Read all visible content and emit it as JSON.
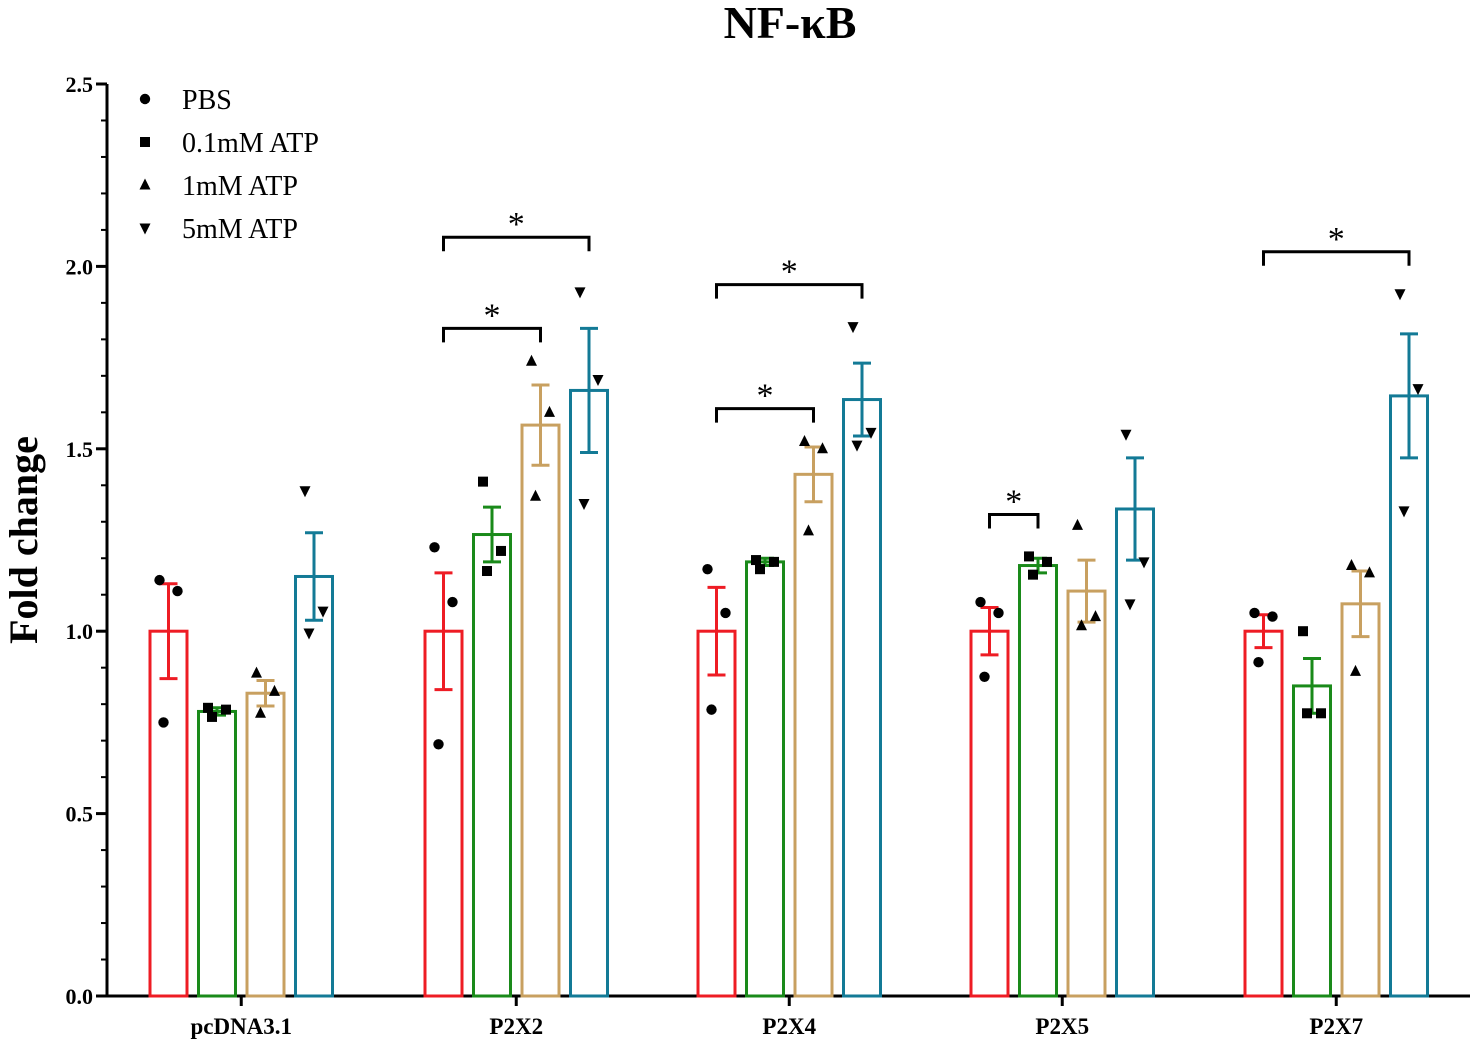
{
  "chart_data": {
    "type": "bar",
    "title": "NF-κB",
    "xlabel": "",
    "ylabel": "Fold change",
    "ylim": [
      0,
      2.5
    ],
    "yticks": [
      "0.0",
      "0.5",
      "1.0",
      "1.5",
      "2.0",
      "2.5"
    ],
    "categories": [
      "pcDNA3.1",
      "P2X2",
      "P2X4",
      "P2X5",
      "P2X7"
    ],
    "legend_position": "top-left",
    "series": [
      {
        "name": "PBS",
        "color": "#ee1c24",
        "marker": "circle",
        "values": [
          1.0,
          1.0,
          1.0,
          1.0,
          1.0
        ],
        "errors": [
          0.13,
          0.16,
          0.12,
          0.065,
          0.045
        ],
        "points": [
          [
            1.14,
            1.11,
            0.75
          ],
          [
            1.23,
            1.08,
            0.69
          ],
          [
            1.17,
            1.05,
            0.785
          ],
          [
            1.08,
            1.05,
            0.875
          ],
          [
            1.05,
            1.04,
            0.915
          ]
        ]
      },
      {
        "name": "0.1mM ATP",
        "color": "#1a8a1a",
        "marker": "square",
        "values": [
          0.78,
          1.265,
          1.19,
          1.18,
          0.85
        ],
        "errors": [
          0.01,
          0.075,
          0.01,
          0.02,
          0.075
        ],
        "points": [
          [
            0.79,
            0.785,
            0.765
          ],
          [
            1.41,
            1.22,
            1.165
          ],
          [
            1.195,
            1.19,
            1.17
          ],
          [
            1.205,
            1.19,
            1.155
          ],
          [
            1.0,
            0.775,
            0.775
          ]
        ]
      },
      {
        "name": "1mM ATP",
        "color": "#c8a060",
        "marker": "triangle-up",
        "values": [
          0.83,
          1.565,
          1.43,
          1.11,
          1.075
        ],
        "errors": [
          0.035,
          0.11,
          0.075,
          0.085,
          0.09
        ],
        "points": [
          [
            0.885,
            0.835,
            0.775
          ],
          [
            1.74,
            1.6,
            1.37
          ],
          [
            1.52,
            1.5,
            1.275
          ],
          [
            1.29,
            1.04,
            1.015
          ],
          [
            1.18,
            1.16,
            0.89
          ]
        ]
      },
      {
        "name": "5mM ATP",
        "color": "#137a96",
        "marker": "triangle-down",
        "values": [
          1.15,
          1.66,
          1.635,
          1.335,
          1.645
        ],
        "errors": [
          0.12,
          0.17,
          0.1,
          0.14,
          0.17
        ],
        "points": [
          [
            1.385,
            1.055,
            0.995
          ],
          [
            1.93,
            1.69,
            1.35
          ],
          [
            1.835,
            1.545,
            1.51
          ],
          [
            1.54,
            1.19,
            1.075
          ],
          [
            1.925,
            1.665,
            1.33
          ]
        ]
      }
    ],
    "significance": [
      {
        "category": 1,
        "from": 0,
        "to": 3,
        "y": 2.08,
        "label": "*"
      },
      {
        "category": 1,
        "from": 0,
        "to": 2,
        "y": 1.83,
        "label": "*"
      },
      {
        "category": 2,
        "from": 0,
        "to": 3,
        "y": 1.95,
        "label": "*"
      },
      {
        "category": 2,
        "from": 0,
        "to": 2,
        "y": 1.61,
        "label": "*"
      },
      {
        "category": 3,
        "from": 0,
        "to": 1,
        "y": 1.32,
        "label": "*"
      },
      {
        "category": 4,
        "from": 0,
        "to": 3,
        "y": 2.04,
        "label": "*"
      }
    ]
  }
}
